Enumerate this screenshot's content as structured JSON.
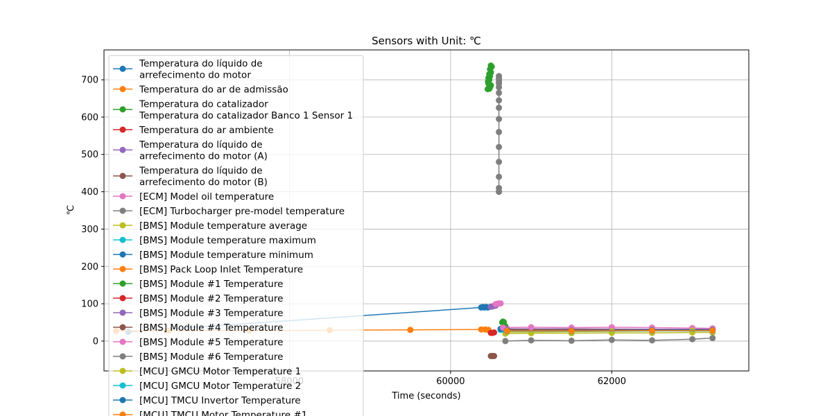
{
  "chart_data": {
    "type": "line",
    "title": "Sensors with Unit: ℃",
    "xlabel": "Time (seconds)",
    "ylabel": "℃",
    "xlim": [
      55700,
      63700
    ],
    "ylim": [
      -80,
      780
    ],
    "xticks": [
      58000,
      60000,
      62000
    ],
    "xtick_labels": [
      "58000",
      "60000",
      "62000"
    ],
    "yticks": [
      0,
      100,
      200,
      300,
      400,
      500,
      600,
      700
    ],
    "ytick_labels": [
      "0",
      "100",
      "200",
      "300",
      "400",
      "500",
      "600",
      "700"
    ],
    "grid": true,
    "legend_position": "upper-left",
    "series": [
      {
        "name": "Temperatura do líquido de \n arrefecimento do motor",
        "color": "#1f77b4",
        "x": [
          56000,
          60380,
          60400,
          60420,
          60440,
          60460
        ],
        "y": [
          25,
          90,
          91,
          90,
          91,
          90
        ]
      },
      {
        "name": "Temperatura do ar de admissão",
        "color": "#ff7f0e",
        "x": [
          55850,
          56500,
          57500,
          58500,
          59500,
          60380,
          60430,
          60470
        ],
        "y": [
          27,
          28,
          28,
          29,
          30,
          31,
          31,
          30
        ]
      },
      {
        "name": "Temperatura do catalizador \n Temperatura do catalizador Banco 1 Sensor 1",
        "color": "#2ca02c",
        "x": [
          60460,
          60470,
          60480,
          60490,
          60500,
          60510,
          60500,
          60490,
          60480,
          60470,
          60465,
          60500,
          60490,
          60480
        ],
        "y": [
          675,
          690,
          700,
          710,
          720,
          735,
          738,
          728,
          715,
          705,
          695,
          685,
          680,
          676
        ]
      },
      {
        "name": "Temperatura do ar ambiente",
        "color": "#d62728",
        "x": [
          60500,
          60520,
          60540
        ],
        "y": [
          22,
          22,
          23
        ]
      },
      {
        "name": "Temperatura do líquido de \n arrefecimento do motor (A)",
        "color": "#9467bd",
        "x": [
          60500,
          60520,
          60540,
          60560
        ],
        "y": [
          92,
          93,
          94,
          95
        ]
      },
      {
        "name": "Temperatura do líquido de \n arrefecimento do motor (B)",
        "color": "#8c564b",
        "x": [
          60500,
          60520,
          60540
        ],
        "y": [
          -40,
          -40,
          -40
        ]
      },
      {
        "name": "[ECM] Model oil temperature",
        "color": "#e377c2",
        "x": [
          60560,
          60580,
          60600,
          60620
        ],
        "y": [
          99,
          100,
          101,
          101
        ]
      },
      {
        "name": "[ECM] Turbocharger pre-model temperature",
        "color": "#7f7f7f",
        "x": [
          60600,
          60600,
          60600,
          60600,
          60600,
          60600,
          60600,
          60600,
          60600,
          60600,
          60600,
          60600,
          60600,
          60600,
          60600,
          60600,
          60600
        ],
        "y": [
          400,
          410,
          440,
          480,
          520,
          560,
          595,
          625,
          645,
          665,
          680,
          695,
          705,
          710,
          700,
          690,
          400
        ]
      },
      {
        "name": "[BMS] Module temperature average",
        "color": "#bcbd22",
        "x": [
          60680,
          61000,
          61500,
          62000,
          62500,
          63000,
          63250
        ],
        "y": [
          20,
          21,
          21,
          22,
          22,
          23,
          23
        ]
      },
      {
        "name": "[BMS] Module temperature maximum",
        "color": "#17becf",
        "x": [
          60620,
          60650,
          60700
        ],
        "y": [
          30,
          31,
          30
        ]
      },
      {
        "name": "[BMS] Module temperature minimum",
        "color": "#1f77b4",
        "x": [
          60620,
          60650,
          60700
        ],
        "y": [
          33,
          34,
          33
        ]
      },
      {
        "name": "[BMS] Pack Loop Inlet Temperature",
        "color": "#ff7f0e",
        "x": [
          60700,
          61500,
          62500,
          63250
        ],
        "y": [
          30,
          30,
          29,
          29
        ]
      },
      {
        "name": "[BMS] Module #1 Temperature",
        "color": "#2ca02c",
        "x": [
          60640,
          60650,
          60660,
          60680
        ],
        "y": [
          50,
          52,
          51,
          40
        ]
      },
      {
        "name": "[BMS] Module #2 Temperature",
        "color": "#d62728",
        "x": [
          60700,
          61500,
          62500,
          63250
        ],
        "y": [
          32,
          32,
          31,
          31
        ]
      },
      {
        "name": "[BMS] Module #3 Temperature",
        "color": "#9467bd",
        "x": [
          60700,
          61500,
          62500,
          63250
        ],
        "y": [
          33,
          33,
          32,
          32
        ]
      },
      {
        "name": "[BMS] Module #4 Temperature",
        "color": "#8c564b",
        "x": [
          60700,
          61500,
          62500,
          63250
        ],
        "y": [
          31,
          31,
          30,
          30
        ]
      },
      {
        "name": "[BMS] Module #5 Temperature",
        "color": "#e377c2",
        "x": [
          60650,
          61000,
          61500,
          62000,
          62500,
          63000,
          63250
        ],
        "y": [
          36,
          37,
          36,
          37,
          36,
          35,
          34
        ]
      },
      {
        "name": "[BMS] Module #6 Temperature",
        "color": "#7f7f7f",
        "x": [
          60680,
          61000,
          61500,
          62000,
          62500,
          63000,
          63250
        ],
        "y": [
          0,
          2,
          1,
          3,
          2,
          5,
          8
        ]
      },
      {
        "name": "[MCU] GMCU Motor Temperature 1",
        "color": "#bcbd22",
        "x": [
          60700,
          61500,
          62000,
          62500,
          63000,
          63250
        ],
        "y": [
          24,
          25,
          26,
          27,
          28,
          28
        ]
      },
      {
        "name": "[MCU] GMCU Motor Temperature 2",
        "color": "#17becf",
        "x": [
          60700,
          61500,
          62500,
          63250
        ],
        "y": [
          26,
          26,
          27,
          27
        ]
      },
      {
        "name": "[MCU] TMCU Invertor Temperature",
        "color": "#1f77b4",
        "x": [
          60700,
          61500,
          62500,
          63250
        ],
        "y": [
          28,
          28,
          29,
          29
        ]
      },
      {
        "name": "[MCU] TMCU Motor Temperature #1",
        "color": "#ff7f0e",
        "x": [
          60700,
          61500,
          62500,
          63250
        ],
        "y": [
          27,
          27,
          28,
          28
        ]
      }
    ]
  }
}
